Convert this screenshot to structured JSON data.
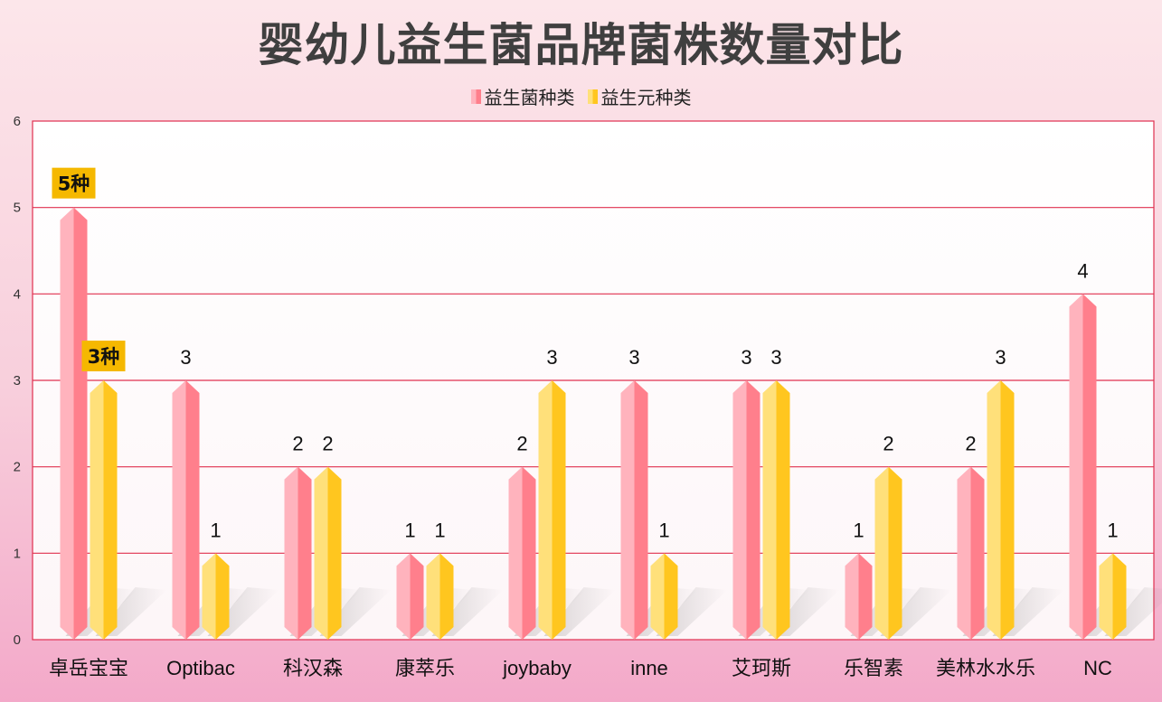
{
  "title": "婴幼儿益生菌品牌菌株数量对比",
  "colors": {
    "probiotic_light": "#ffb3bd",
    "probiotic_dark": "#ff7f8c",
    "prebiotic_light": "#ffe07a",
    "prebiotic_dark": "#ffc61f",
    "grid": "#e0304f",
    "callout": "#f5b800"
  },
  "chart_data": {
    "type": "bar",
    "categories": [
      "卓岳宝宝",
      "Optibac",
      "科汉森",
      "康萃乐",
      "joybaby",
      "inne",
      "艾珂斯",
      "乐智素",
      "美林水水乐",
      "NC"
    ],
    "series": [
      {
        "name": "益生菌种类",
        "values": [
          5,
          3,
          2,
          1,
          2,
          3,
          3,
          1,
          2,
          4
        ]
      },
      {
        "name": "益生元种类",
        "values": [
          3,
          1,
          2,
          1,
          3,
          1,
          3,
          2,
          3,
          1
        ]
      }
    ],
    "ylim": [
      0,
      6
    ],
    "yticks": [
      "0",
      "1",
      "2",
      "3",
      "4",
      "5",
      "6"
    ],
    "grid": true,
    "legend_position": "top-center",
    "callouts": [
      {
        "series": 0,
        "index": 0,
        "text": "5种"
      },
      {
        "series": 1,
        "index": 0,
        "text": "3种"
      }
    ]
  }
}
